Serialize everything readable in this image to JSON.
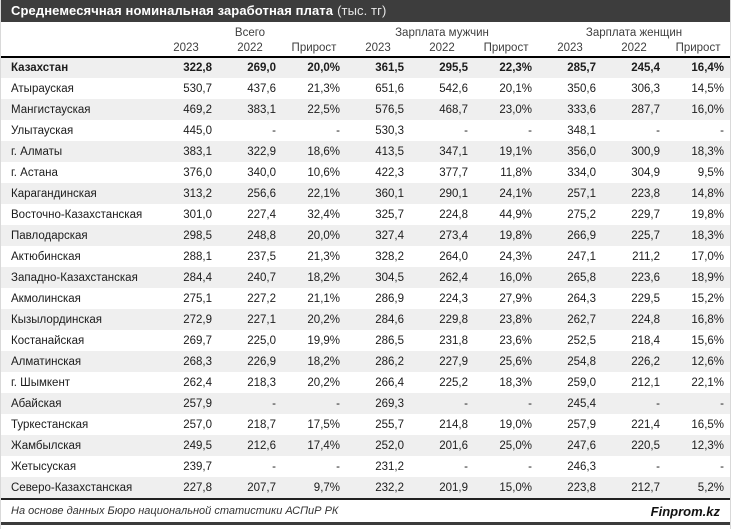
{
  "title": {
    "main": "Среднемесячная номинальная заработная плата",
    "unit": "(тыс. тг)"
  },
  "footer": {
    "source": "На основе данных Бюро национальной статистики АСПиР РК",
    "brand": "Finprom.kz"
  },
  "colors": {
    "title_bar": "#3d3d3d",
    "stripe": "#efefef",
    "header_rule": "#000000",
    "footer_rule": "#3b3b3b",
    "text": "#1c1c1c"
  },
  "chart_data": {
    "type": "table",
    "title": "Среднемесячная номинальная заработная плата (тыс. тг)",
    "column_groups": [
      "Всего",
      "Зарплата мужчин",
      "Зарплата женщин"
    ],
    "sub_columns": [
      "2023",
      "2022",
      "Прирост"
    ],
    "rows": [
      {
        "region": "Казахстан",
        "bold": true,
        "values": [
          "322,8",
          "269,0",
          "20,0%",
          "361,5",
          "295,5",
          "22,3%",
          "285,7",
          "245,4",
          "16,4%"
        ]
      },
      {
        "region": "Атырауская",
        "bold": false,
        "values": [
          "530,7",
          "437,6",
          "21,3%",
          "651,6",
          "542,6",
          "20,1%",
          "350,6",
          "306,3",
          "14,5%"
        ]
      },
      {
        "region": "Мангистауская",
        "bold": false,
        "values": [
          "469,2",
          "383,1",
          "22,5%",
          "576,5",
          "468,7",
          "23,0%",
          "333,6",
          "287,7",
          "16,0%"
        ]
      },
      {
        "region": "Улытауская",
        "bold": false,
        "values": [
          "445,0",
          "-",
          "-",
          "530,3",
          "-",
          "-",
          "348,1",
          "-",
          "-"
        ]
      },
      {
        "region": "г. Алматы",
        "bold": false,
        "values": [
          "383,1",
          "322,9",
          "18,6%",
          "413,5",
          "347,1",
          "19,1%",
          "356,0",
          "300,9",
          "18,3%"
        ]
      },
      {
        "region": "г. Астана",
        "bold": false,
        "values": [
          "376,0",
          "340,0",
          "10,6%",
          "422,3",
          "377,7",
          "11,8%",
          "334,0",
          "304,9",
          "9,5%"
        ]
      },
      {
        "region": "Карагандинская",
        "bold": false,
        "values": [
          "313,2",
          "256,6",
          "22,1%",
          "360,1",
          "290,1",
          "24,1%",
          "257,1",
          "223,8",
          "14,8%"
        ]
      },
      {
        "region": "Восточно-Казахстанская",
        "bold": false,
        "values": [
          "301,0",
          "227,4",
          "32,4%",
          "325,7",
          "224,8",
          "44,9%",
          "275,2",
          "229,7",
          "19,8%"
        ]
      },
      {
        "region": "Павлодарская",
        "bold": false,
        "values": [
          "298,5",
          "248,8",
          "20,0%",
          "327,4",
          "273,4",
          "19,8%",
          "266,9",
          "225,7",
          "18,3%"
        ]
      },
      {
        "region": "Актюбинская",
        "bold": false,
        "values": [
          "288,1",
          "237,5",
          "21,3%",
          "328,2",
          "264,0",
          "24,3%",
          "247,1",
          "211,2",
          "17,0%"
        ]
      },
      {
        "region": "Западно-Казахстанская",
        "bold": false,
        "values": [
          "284,4",
          "240,7",
          "18,2%",
          "304,5",
          "262,4",
          "16,0%",
          "265,8",
          "223,6",
          "18,9%"
        ]
      },
      {
        "region": "Акмолинская",
        "bold": false,
        "values": [
          "275,1",
          "227,2",
          "21,1%",
          "286,9",
          "224,3",
          "27,9%",
          "264,3",
          "229,5",
          "15,2%"
        ]
      },
      {
        "region": "Кызылординская",
        "bold": false,
        "values": [
          "272,9",
          "227,1",
          "20,2%",
          "284,6",
          "229,8",
          "23,8%",
          "262,7",
          "224,8",
          "16,8%"
        ]
      },
      {
        "region": "Костанайская",
        "bold": false,
        "values": [
          "269,7",
          "225,0",
          "19,9%",
          "286,5",
          "231,8",
          "23,6%",
          "252,5",
          "218,4",
          "15,6%"
        ]
      },
      {
        "region": "Алматинская",
        "bold": false,
        "values": [
          "268,3",
          "226,9",
          "18,2%",
          "286,2",
          "227,9",
          "25,6%",
          "254,8",
          "226,2",
          "12,6%"
        ]
      },
      {
        "region": "г. Шымкент",
        "bold": false,
        "values": [
          "262,4",
          "218,3",
          "20,2%",
          "266,4",
          "225,2",
          "18,3%",
          "259,0",
          "212,1",
          "22,1%"
        ]
      },
      {
        "region": "Абайская",
        "bold": false,
        "values": [
          "257,9",
          "-",
          "-",
          "269,3",
          "-",
          "-",
          "245,4",
          "-",
          "-"
        ]
      },
      {
        "region": "Туркестанская",
        "bold": false,
        "values": [
          "257,0",
          "218,7",
          "17,5%",
          "255,7",
          "214,8",
          "19,0%",
          "257,9",
          "221,4",
          "16,5%"
        ]
      },
      {
        "region": "Жамбылская",
        "bold": false,
        "values": [
          "249,5",
          "212,6",
          "17,4%",
          "252,0",
          "201,6",
          "25,0%",
          "247,6",
          "220,5",
          "12,3%"
        ]
      },
      {
        "region": "Жетысуская",
        "bold": false,
        "values": [
          "239,7",
          "-",
          "-",
          "231,2",
          "-",
          "-",
          "246,3",
          "-",
          "-"
        ]
      },
      {
        "region": "Северо-Казахстанская",
        "bold": false,
        "values": [
          "227,8",
          "207,7",
          "9,7%",
          "232,2",
          "201,9",
          "15,0%",
          "223,8",
          "212,7",
          "5,2%"
        ]
      }
    ]
  }
}
